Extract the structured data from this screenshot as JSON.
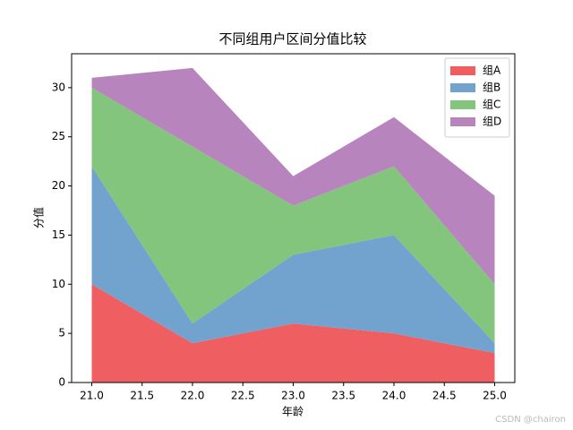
{
  "chart_data": {
    "type": "stacked-area",
    "title": "不同组用户区间分值比较",
    "x_label": "年龄",
    "y_label": "分值",
    "x": [
      21,
      22,
      23,
      24,
      25
    ],
    "series": [
      {
        "name": "组A",
        "color": "#ef5f62",
        "values": [
          10,
          4,
          6,
          5,
          3
        ]
      },
      {
        "name": "组B",
        "color": "#72a3cf",
        "values": [
          12,
          2,
          7,
          10,
          1
        ]
      },
      {
        "name": "组C",
        "color": "#83c57c",
        "values": [
          8,
          18,
          5,
          7,
          6
        ]
      },
      {
        "name": "组D",
        "color": "#b784be",
        "values": [
          1,
          8,
          3,
          5,
          9
        ]
      }
    ],
    "xlim": [
      20.8,
      25.2
    ],
    "xticks": [
      {
        "value": 21,
        "label": "21.0"
      },
      {
        "value": 21.5,
        "label": "21.5"
      },
      {
        "value": 22,
        "label": "22.0"
      },
      {
        "value": 22.5,
        "label": "22.5"
      },
      {
        "value": 23,
        "label": "23.0"
      },
      {
        "value": 23.5,
        "label": "23.5"
      },
      {
        "value": 24,
        "label": "24.0"
      },
      {
        "value": 24.5,
        "label": "24.5"
      },
      {
        "value": 25,
        "label": "25.0"
      }
    ],
    "ylim": [
      0,
      33.45
    ],
    "yticks": [
      0,
      5,
      10,
      15,
      20,
      25,
      30
    ],
    "legend": "upper right",
    "watermark": "CSDN @chairon"
  }
}
